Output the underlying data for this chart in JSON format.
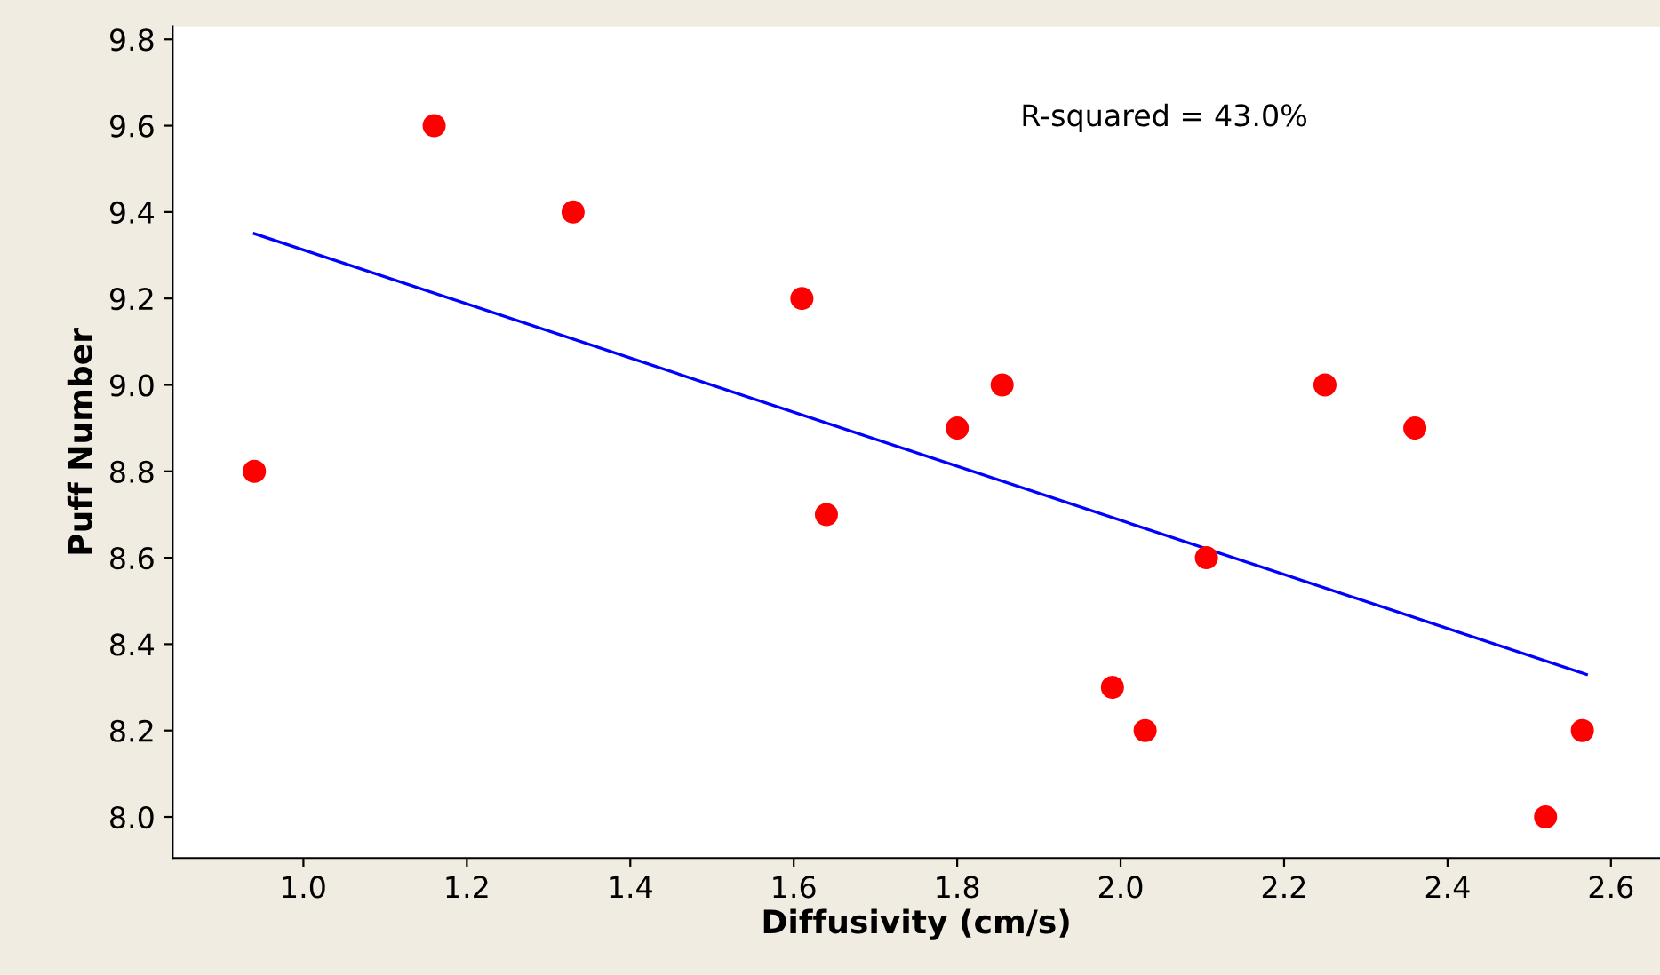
{
  "chart_data": {
    "type": "scatter",
    "xlabel": "Diffusivity (cm/s)",
    "ylabel": "Puff Number",
    "xlim": [
      0.84,
      2.66
    ],
    "ylim": [
      7.905,
      9.83
    ],
    "xticks": [
      {
        "value": 1,
        "label": "1.0"
      },
      1.2,
      1.4,
      1.6,
      1.8,
      {
        "value": 2,
        "label": "2.0"
      },
      2.2,
      2.4,
      2.6
    ],
    "yticks": [
      {
        "value": 8,
        "label": "8.0"
      },
      8.2,
      8.4,
      8.6,
      8.8,
      {
        "value": 9,
        "label": "9.0"
      },
      9.2,
      9.4,
      9.6,
      9.8
    ],
    "grid": false,
    "annotations": [
      "R-squared = 43.0%"
    ],
    "series": [
      {
        "color": "#ff0000",
        "marker": "circle",
        "x": [
          0.94,
          1.16,
          1.33,
          1.61,
          1.64,
          1.8,
          1.855,
          1.99,
          2.03,
          2.105,
          2.25,
          2.36,
          2.52,
          2.565
        ],
        "values": [
          8.8,
          9.6,
          9.4,
          9.2,
          8.7,
          8.9,
          9.0,
          8.3,
          8.2,
          8.6,
          9.0,
          8.9,
          8.0,
          8.2
        ]
      },
      {
        "type": "line",
        "color": "#0000ff",
        "x": [
          0.94,
          2.57
        ],
        "values": [
          9.35,
          8.33
        ]
      }
    ]
  }
}
